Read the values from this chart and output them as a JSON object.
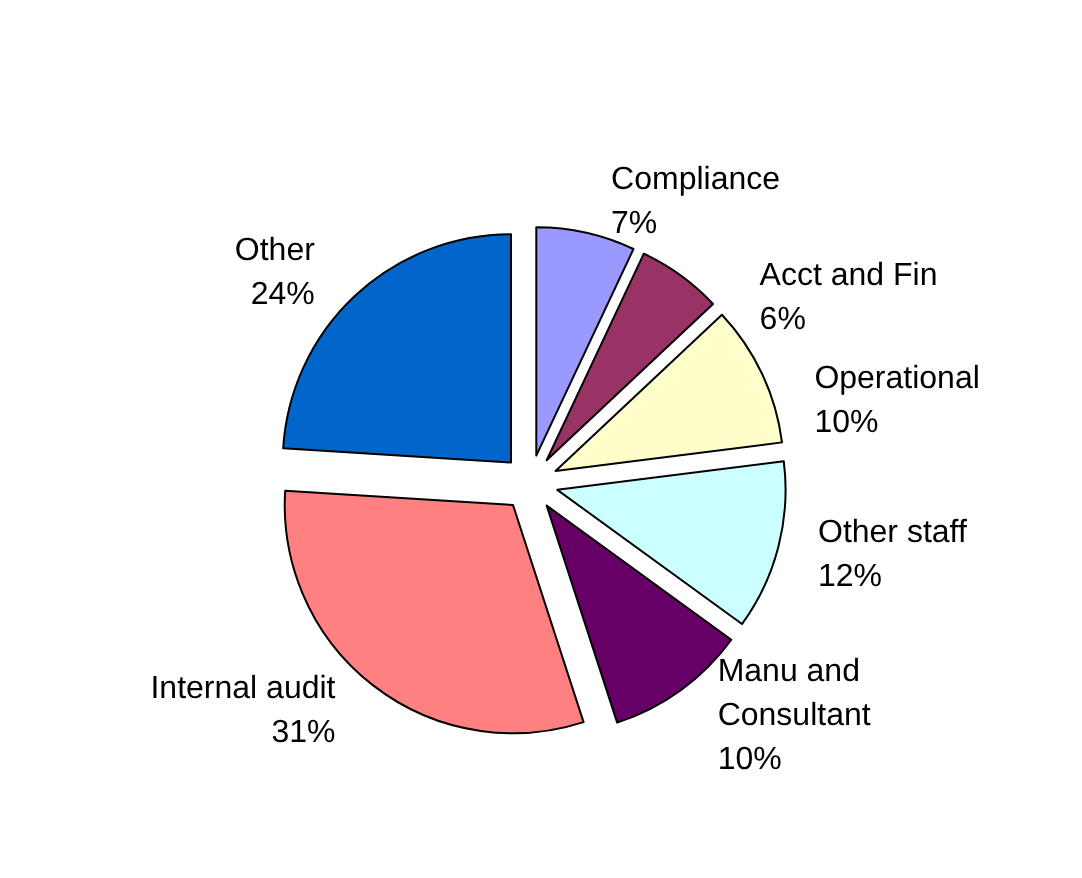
{
  "chart_data": {
    "type": "pie",
    "categories": [
      "Compliance",
      "Acct and Fin",
      "Operational",
      "Other staff",
      "Manu and Consultant",
      "Internal audit",
      "Other"
    ],
    "values": [
      7,
      6,
      10,
      12,
      10,
      31,
      24
    ],
    "colors": [
      "#9999ff",
      "#993366",
      "#ffffcc",
      "#ccffff",
      "#660066",
      "#ff8080",
      "#0066cc"
    ],
    "value_labels": [
      "7%",
      "6%",
      "10%",
      "12%",
      "10%",
      "31%",
      "24%"
    ],
    "legend": false
  }
}
